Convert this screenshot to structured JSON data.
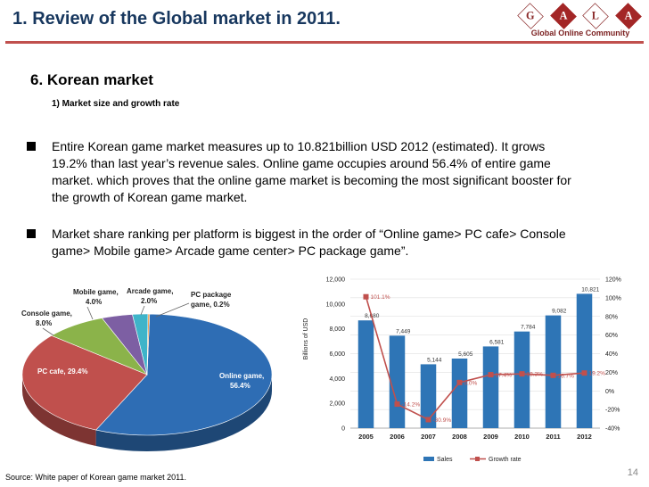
{
  "header": {
    "title": "1. Review of the Global market in 2011.",
    "logo_letters": [
      "G",
      "A",
      "L",
      "A"
    ],
    "logo_subtitle": "Global Online Community"
  },
  "section_title": "6. Korean market",
  "subsection_title": "1) Market size and growth rate",
  "bullets": [
    "Entire Korean game market measures up to 10.821billion USD 2012 (estimated). It grows 19.2% than last year’s revenue sales. Online game occupies around 56.4% of entire game market. which proves that the online game market is becoming the most significant booster for the growth of Korean game market.",
    "Market share ranking per platform is biggest in the order of “Online game> PC cafe> Console game> Mobile game> Arcade game center> PC package game”."
  ],
  "source": "Source: White paper of Korean game market 2011.",
  "page_number": "14",
  "colors": {
    "title": "#17375e",
    "rule": "#c0504d",
    "bar": "#2e75b6",
    "line": "#c0504d"
  },
  "chart_data": [
    {
      "type": "pie",
      "slices": [
        {
          "label": "Online game,",
          "value_label": "56.4%",
          "value": 56.4,
          "color": "#2e6db4"
        },
        {
          "label": "PC cafe,",
          "value_label": "29.4%",
          "value": 29.4,
          "color": "#c0504d"
        },
        {
          "label": "Console game,",
          "value_label": "8.0%",
          "value": 8.0,
          "color": "#8bb34a"
        },
        {
          "label": "Mobile game,",
          "value_label": "4.0%",
          "value": 4.0,
          "color": "#7d5fa3"
        },
        {
          "label": "Arcade game,",
          "value_label": "2.0%",
          "value": 2.0,
          "color": "#3fb4c9"
        },
        {
          "label": "PC package",
          "value_label": "game, 0.2%",
          "value": 0.2,
          "color": "#f28e2b"
        }
      ]
    },
    {
      "type": "bar",
      "categories": [
        "2005",
        "2006",
        "2007",
        "2008",
        "2009",
        "2010",
        "2011",
        "2012"
      ],
      "series": [
        {
          "name": "Sales",
          "values": [
            8680,
            7449,
            5144,
            5605,
            6581,
            7784,
            9082,
            10821
          ],
          "labels": [
            "8,680",
            "7,449",
            "5,144",
            "5,605",
            "6,581",
            "7,784",
            "9,082",
            "10,821"
          ]
        },
        {
          "name": "Growth rate",
          "values": [
            101.1,
            -14.2,
            -30.9,
            9.0,
            17.4,
            18.3,
            16.7,
            19.2
          ],
          "labels": [
            "101.1%",
            "-14.2%",
            "-30.9%",
            "9.0%",
            "17.4%",
            "18.3%",
            "16.7%",
            "19.2%"
          ]
        }
      ],
      "ylabel": "Billions of USD",
      "ylim": [
        0,
        12000
      ],
      "y_ticks": [
        "0",
        "2,000",
        "4,000",
        "6,000",
        "8,000",
        "10,000",
        "12,000"
      ],
      "y2lim": [
        -40,
        120
      ],
      "y2_ticks": [
        "-40%",
        "-20%",
        "0%",
        "20%",
        "40%",
        "60%",
        "80%",
        "100%",
        "120%"
      ],
      "grid": true,
      "legend_position": "bottom"
    }
  ]
}
